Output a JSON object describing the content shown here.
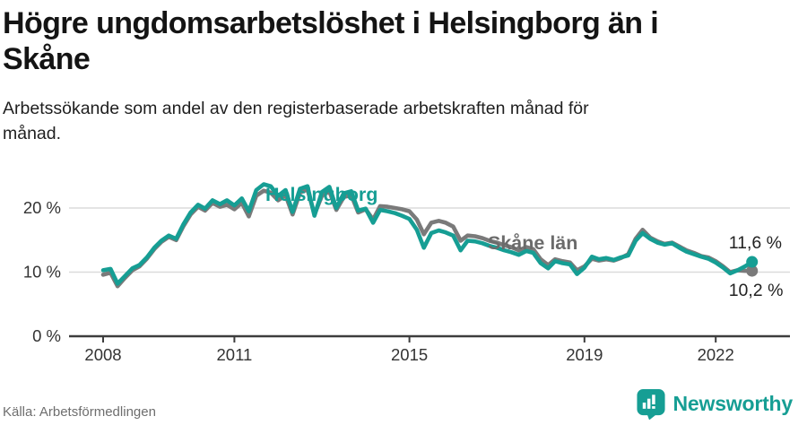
{
  "header": {
    "title": "Högre ungdomsarbetslöshet i Helsingborg än i Skåne",
    "title_lines": [
      "Högre ungdomsarbetslöshet i Helsingborg än i",
      "Skåne"
    ],
    "subtitle": "Arbetssökande som andel av den registerbaserade arbetskraften månad för månad.",
    "subtitle_lines": [
      "Arbetssökande som andel av den registerbaserade arbetskraften månad för",
      "månad."
    ]
  },
  "chart_data": {
    "type": "line",
    "title": "Högre ungdomsarbetslöshet i Helsingborg än i Skåne",
    "xlabel": "",
    "ylabel": "",
    "unit": "%",
    "grid": "horizontal",
    "legend_position": "inline-labels",
    "xlim": [
      2007.8,
      2023.0
    ],
    "ylim": [
      0,
      26
    ],
    "x_ticks": [
      2008,
      2011,
      2015,
      2019,
      2022
    ],
    "y_ticks": [
      0,
      10,
      20
    ],
    "y_tick_labels": [
      "0 %",
      "10 %",
      "20 %"
    ],
    "x": [
      2008,
      2008.17,
      2008.33,
      2008.5,
      2008.67,
      2008.83,
      2009,
      2009.17,
      2009.33,
      2009.5,
      2009.67,
      2009.83,
      2010,
      2010.17,
      2010.33,
      2010.5,
      2010.67,
      2010.83,
      2011,
      2011.17,
      2011.33,
      2011.5,
      2011.67,
      2011.83,
      2012,
      2012.17,
      2012.33,
      2012.5,
      2012.67,
      2012.83,
      2013,
      2013.17,
      2013.33,
      2013.5,
      2013.67,
      2013.83,
      2014,
      2014.17,
      2014.33,
      2014.5,
      2014.67,
      2014.83,
      2015,
      2015.17,
      2015.33,
      2015.5,
      2015.67,
      2015.83,
      2016,
      2016.17,
      2016.33,
      2016.5,
      2016.67,
      2016.83,
      2017,
      2017.17,
      2017.33,
      2017.5,
      2017.67,
      2017.83,
      2018,
      2018.17,
      2018.33,
      2018.5,
      2018.67,
      2018.83,
      2019,
      2019.17,
      2019.33,
      2019.5,
      2019.67,
      2019.83,
      2020,
      2020.17,
      2020.33,
      2020.5,
      2020.67,
      2020.83,
      2021,
      2021.17,
      2021.33,
      2021.5,
      2021.67,
      2021.83,
      2022,
      2022.17,
      2022.33,
      2022.5,
      2022.67,
      2022.83
    ],
    "series": [
      {
        "name": "Skåne län",
        "color": "#7a7a7a",
        "label_color": "#6b6b6b",
        "end_label": "10,2 %",
        "end_value": 10.2,
        "values": [
          9.6,
          9.9,
          7.8,
          9.1,
          10.3,
          10.9,
          12.1,
          13.6,
          14.7,
          15.5,
          15.0,
          17.1,
          19.0,
          20.2,
          19.6,
          20.8,
          20.2,
          20.5,
          19.8,
          20.8,
          18.7,
          21.9,
          22.7,
          22.4,
          21.2,
          22.0,
          19.0,
          22.4,
          22.9,
          19.0,
          21.9,
          22.6,
          19.7,
          21.7,
          22.0,
          19.3,
          19.8,
          18.2,
          20.3,
          20.2,
          20.0,
          19.8,
          19.5,
          18.2,
          15.9,
          17.7,
          18.0,
          17.7,
          17.1,
          14.9,
          15.7,
          15.6,
          15.3,
          14.9,
          14.6,
          14.2,
          13.9,
          13.4,
          13.9,
          13.6,
          12.0,
          11.1,
          12.0,
          11.7,
          11.5,
          10.3,
          10.9,
          12.1,
          11.8,
          12.0,
          11.8,
          12.2,
          12.8,
          15.2,
          16.6,
          15.4,
          14.8,
          14.4,
          14.6,
          14.0,
          13.4,
          13.0,
          12.5,
          12.3,
          11.7,
          10.9,
          10.0,
          10.3,
          10.2,
          10.2
        ]
      },
      {
        "name": "Helsingborg",
        "color": "#169e94",
        "label_color": "#169e94",
        "end_label": "11,6 %",
        "end_value": 11.6,
        "values": [
          10.3,
          10.5,
          8.2,
          9.4,
          10.6,
          11.1,
          12.3,
          13.8,
          14.9,
          15.7,
          15.2,
          17.4,
          19.3,
          20.5,
          19.9,
          21.2,
          20.6,
          21.2,
          20.4,
          21.5,
          19.5,
          22.8,
          23.7,
          23.4,
          21.9,
          22.8,
          19.4,
          23.0,
          23.4,
          18.8,
          22.5,
          23.3,
          20.0,
          22.3,
          22.6,
          19.6,
          19.9,
          17.7,
          19.7,
          19.5,
          19.2,
          18.8,
          18.3,
          16.6,
          13.8,
          16.1,
          16.5,
          16.2,
          15.7,
          13.4,
          14.9,
          14.8,
          14.5,
          14.1,
          13.8,
          13.4,
          13.1,
          12.7,
          13.3,
          13.0,
          11.4,
          10.6,
          11.7,
          11.4,
          11.2,
          9.7,
          10.7,
          12.4,
          12.0,
          12.2,
          11.9,
          12.3,
          12.6,
          14.9,
          16.1,
          15.2,
          14.6,
          14.3,
          14.5,
          13.8,
          13.2,
          12.8,
          12.4,
          12.1,
          11.5,
          10.7,
          9.8,
          10.3,
          10.9,
          11.6
        ]
      }
    ]
  },
  "footer": {
    "source": "Källa: Arbetsförmedlingen",
    "brand": "Newsworthy"
  },
  "colors": {
    "accent": "#169e94",
    "series_gray": "#7a7a7a",
    "grid": "#dcdcdc",
    "axis": "#3d3d3d",
    "tick_text": "#333333",
    "muted_text": "#6e6e6e"
  },
  "icons": {
    "brand_mark": "newsworthy-bubble-barchart-icon"
  }
}
